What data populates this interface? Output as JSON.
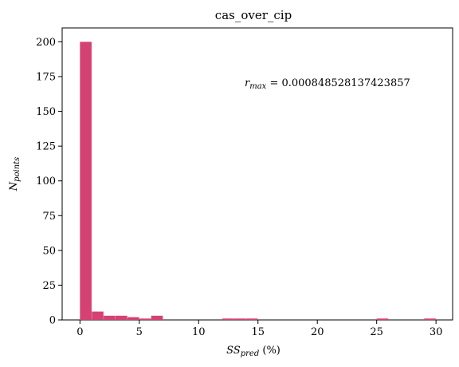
{
  "chart_data": {
    "type": "bar",
    "title": "cas_over_cip",
    "xlabel": {
      "main": "SS",
      "sub": "pred",
      "suffix": " (%)"
    },
    "ylabel": {
      "main": "N",
      "sub": "points"
    },
    "xlim": [
      -1.5,
      31.4
    ],
    "ylim": [
      0,
      210
    ],
    "xticks": [
      0,
      5,
      10,
      15,
      20,
      25,
      30
    ],
    "yticks": [
      0,
      25,
      50,
      75,
      100,
      125,
      150,
      175,
      200
    ],
    "bar_color": "#d44173",
    "bin_width": 1.0,
    "bins": [
      {
        "x": 0.0,
        "count": 200
      },
      {
        "x": 1.0,
        "count": 6
      },
      {
        "x": 2.0,
        "count": 3
      },
      {
        "x": 3.0,
        "count": 3
      },
      {
        "x": 4.0,
        "count": 2
      },
      {
        "x": 5.0,
        "count": 1
      },
      {
        "x": 6.0,
        "count": 3
      },
      {
        "x": 12.0,
        "count": 1
      },
      {
        "x": 13.0,
        "count": 1
      },
      {
        "x": 14.0,
        "count": 1
      },
      {
        "x": 25.0,
        "count": 1
      },
      {
        "x": 29.0,
        "count": 1
      }
    ],
    "annotation": {
      "main": "r",
      "sub": "max",
      "suffix": " = 0.000848528137423857"
    },
    "grid": false,
    "legend": "none"
  }
}
